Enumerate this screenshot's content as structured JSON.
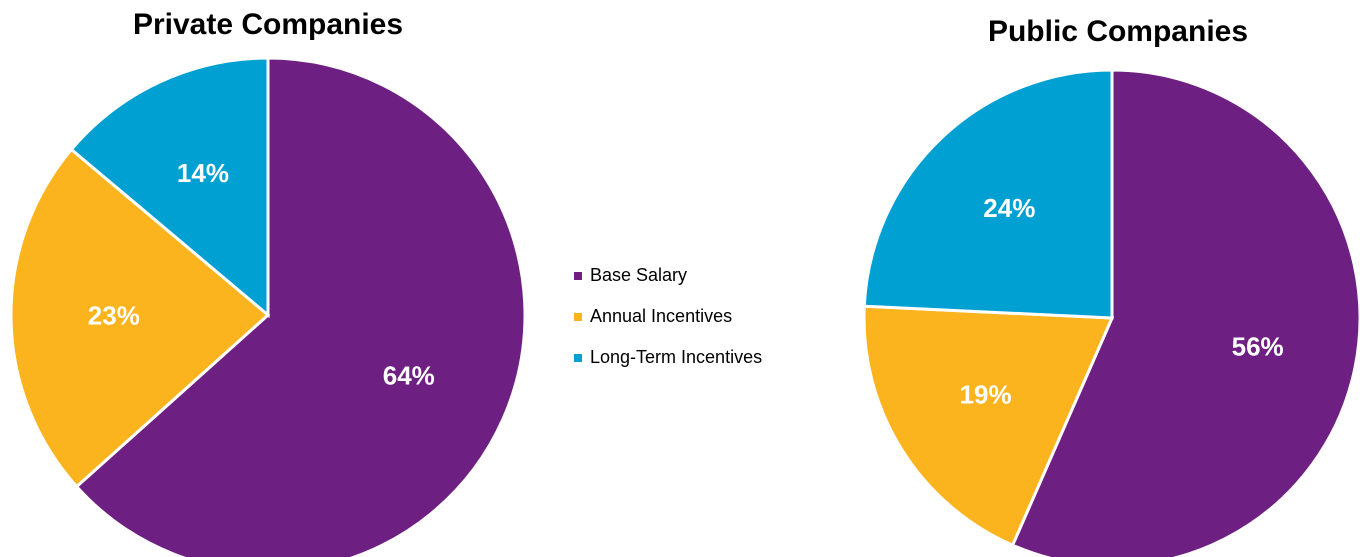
{
  "chart_data": [
    {
      "type": "pie",
      "title": "Private Companies",
      "categories": [
        "Base Salary",
        "Annual Incentives",
        "Long-Term Incentives"
      ],
      "values": [
        64,
        23,
        14
      ],
      "value_labels": [
        "64%",
        "23%",
        "14%"
      ],
      "colors": [
        "#6e2082",
        "#fbb41d",
        "#00a0d2"
      ],
      "legend": "right"
    },
    {
      "type": "pie",
      "title": "Public Companies",
      "categories": [
        "Base Salary",
        "Annual Incentives",
        "Long-Term Incentives"
      ],
      "values": [
        56,
        19,
        24
      ],
      "value_labels": [
        "56%",
        "19%",
        "24%"
      ],
      "colors": [
        "#6e2082",
        "#fbb41d",
        "#00a0d2"
      ]
    }
  ]
}
